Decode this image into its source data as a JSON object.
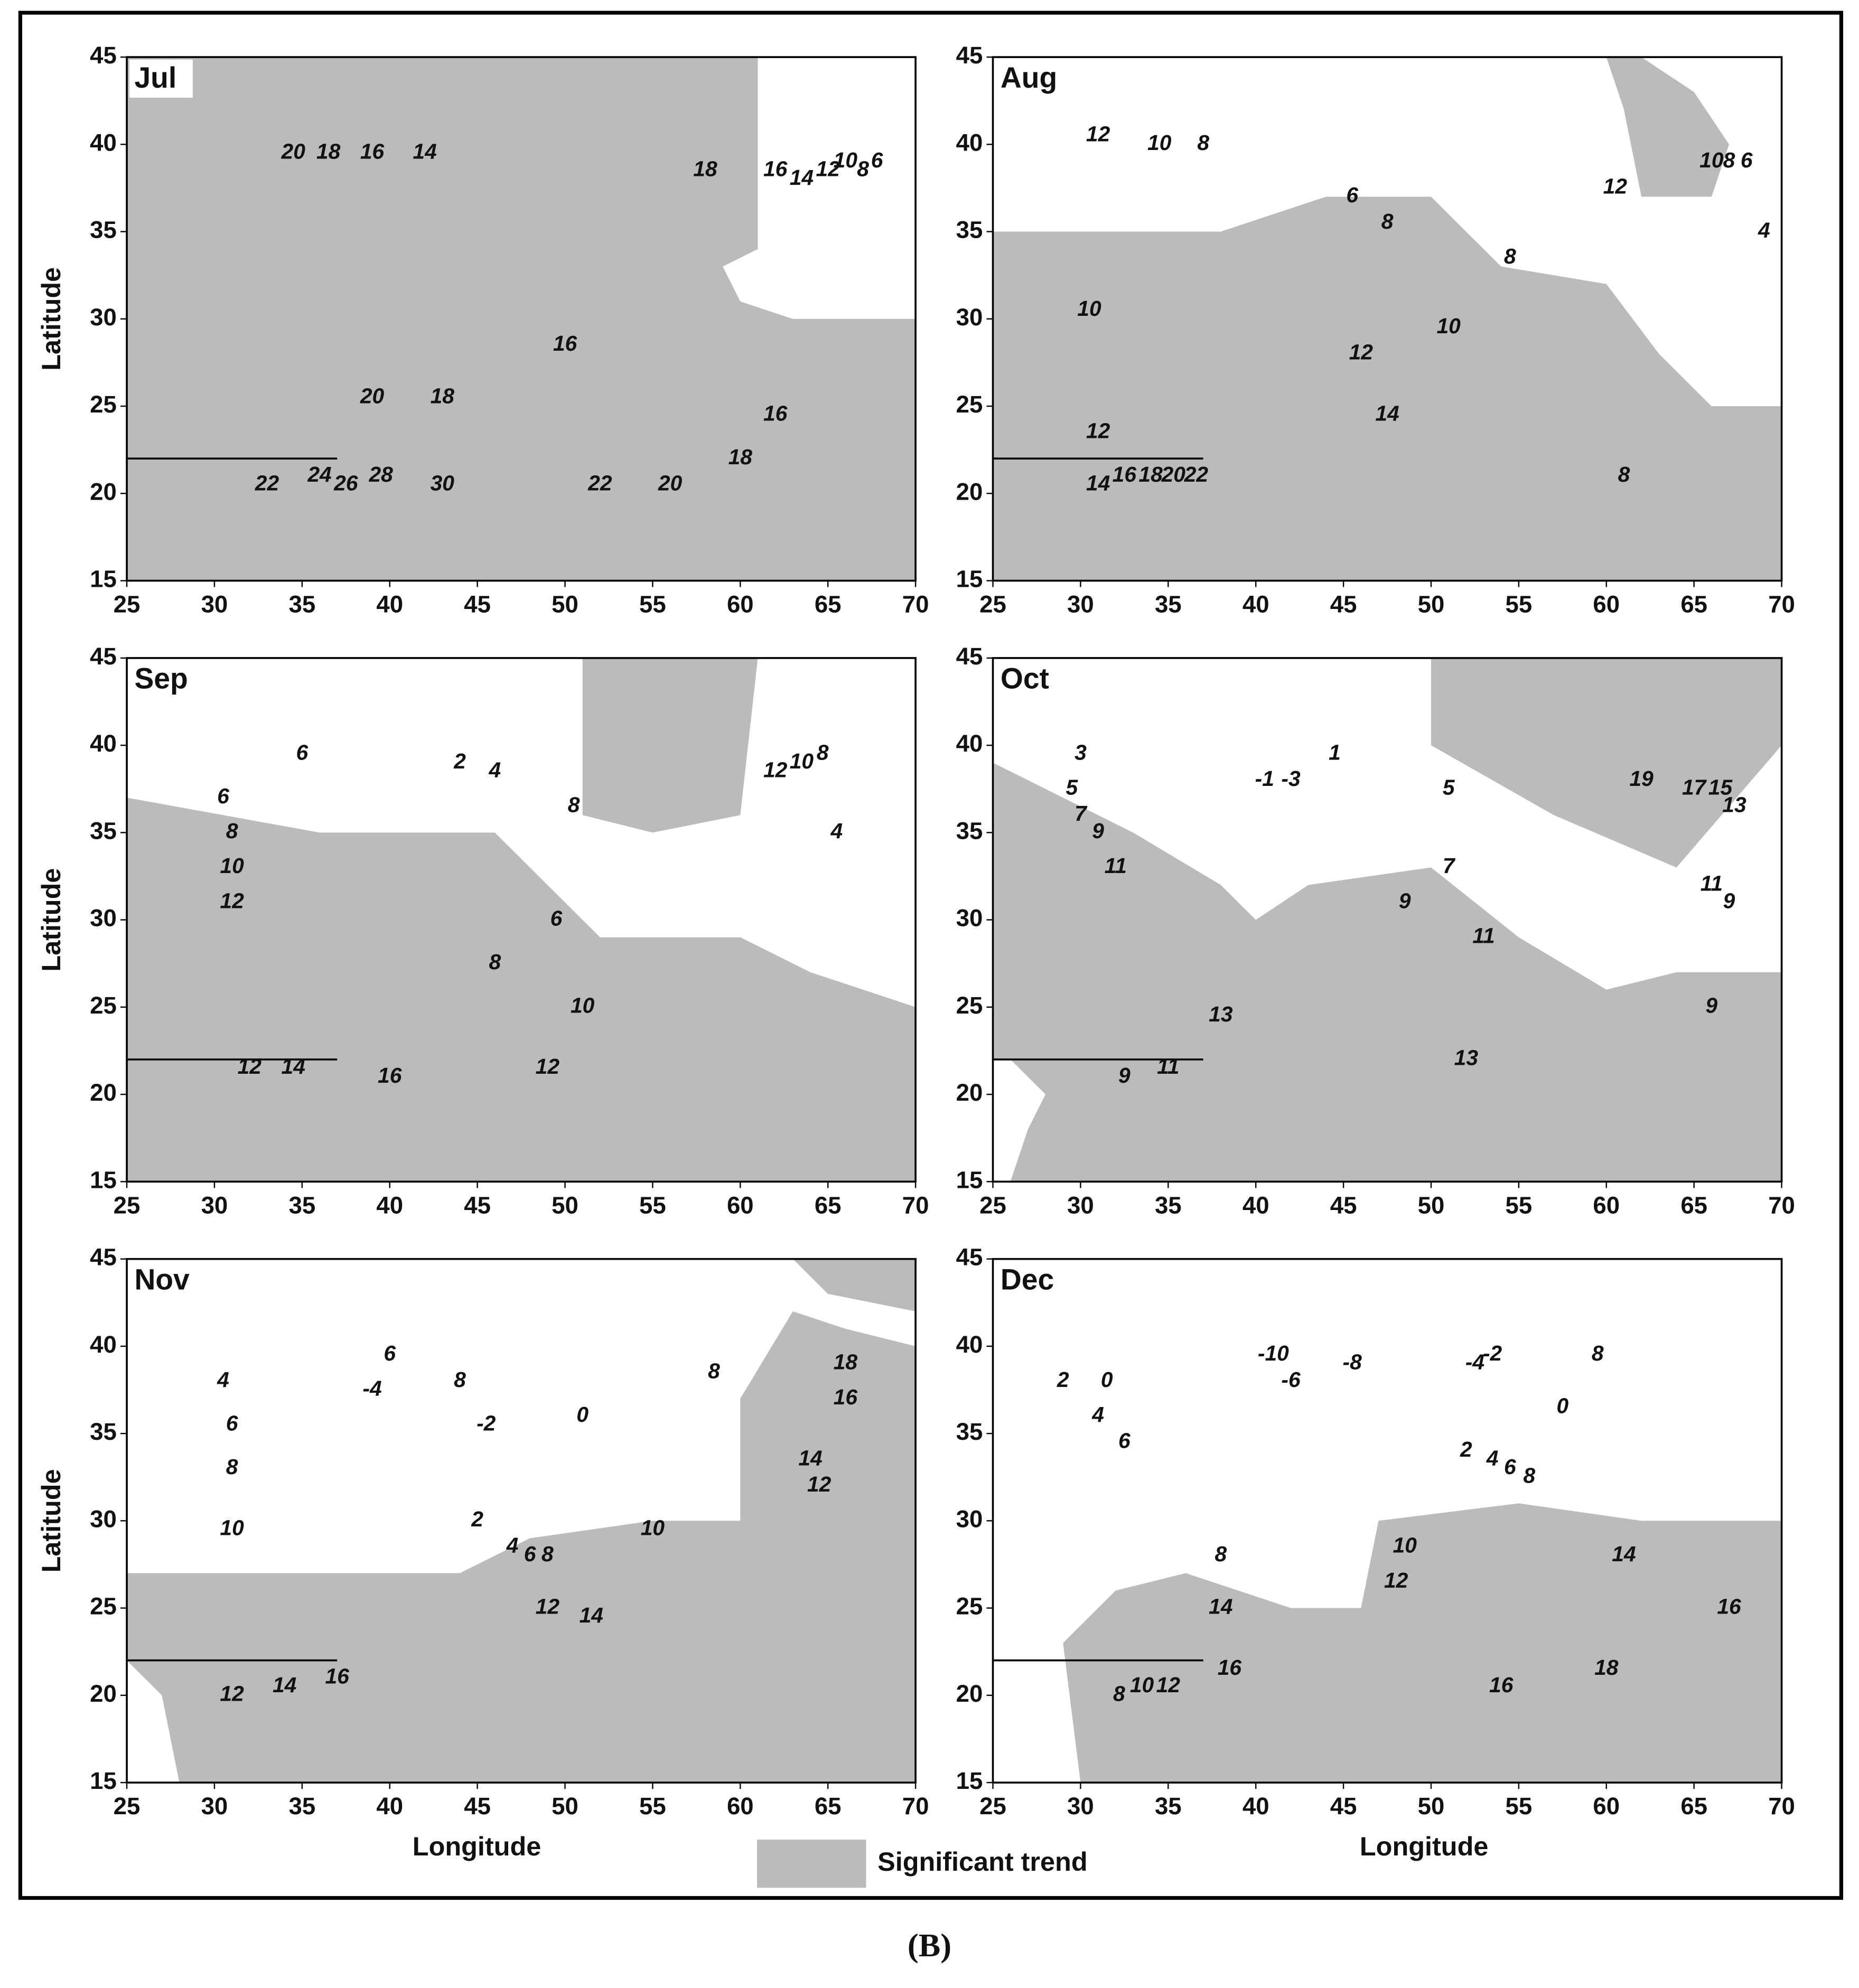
{
  "axes": {
    "xlim": [
      25,
      70
    ],
    "ylim": [
      15,
      45
    ],
    "xticks": [
      25,
      30,
      35,
      40,
      45,
      50,
      55,
      60,
      65,
      70
    ],
    "yticks": [
      15,
      20,
      25,
      30,
      35,
      40,
      45
    ],
    "x_label": "Longitude",
    "y_label": "Latitude"
  },
  "panels": [
    {
      "month": "Jul",
      "contour_labels": [
        20,
        18,
        16,
        14,
        18,
        16,
        14,
        12,
        10,
        8,
        6,
        16,
        18,
        20,
        16,
        18,
        20,
        22,
        30,
        28,
        26,
        24,
        22
      ]
    },
    {
      "month": "Aug",
      "contour_labels": [
        12,
        10,
        8,
        6,
        8,
        8,
        12,
        10,
        8,
        6,
        4,
        10,
        10,
        12,
        14,
        12,
        14,
        16,
        18,
        20,
        22,
        8
      ]
    },
    {
      "month": "Sep",
      "contour_labels": [
        6,
        2,
        4,
        8,
        12,
        10,
        8,
        4,
        6,
        8,
        10,
        12,
        6,
        8,
        10,
        12,
        14,
        16,
        12
      ]
    },
    {
      "month": "Oct",
      "contour_labels": [
        3,
        5,
        7,
        9,
        11,
        1,
        -1,
        -3,
        5,
        7,
        9,
        11,
        19,
        17,
        15,
        13,
        11,
        9,
        9,
        13,
        11,
        9,
        13
      ]
    },
    {
      "month": "Nov",
      "contour_labels": [
        6,
        8,
        -4,
        -2,
        0,
        8,
        18,
        16,
        14,
        12,
        4,
        6,
        8,
        10,
        2,
        4,
        6,
        8,
        10,
        12,
        14,
        16,
        14,
        12
      ]
    },
    {
      "month": "Dec",
      "contour_labels": [
        -10,
        -8,
        -6,
        -4,
        -2,
        8,
        0,
        2,
        0,
        4,
        6,
        2,
        4,
        6,
        8,
        14,
        16,
        18,
        16,
        8,
        10,
        12,
        14,
        16,
        12,
        10,
        8
      ]
    }
  ],
  "legend": "Significant trend",
  "caption": "(B)"
}
